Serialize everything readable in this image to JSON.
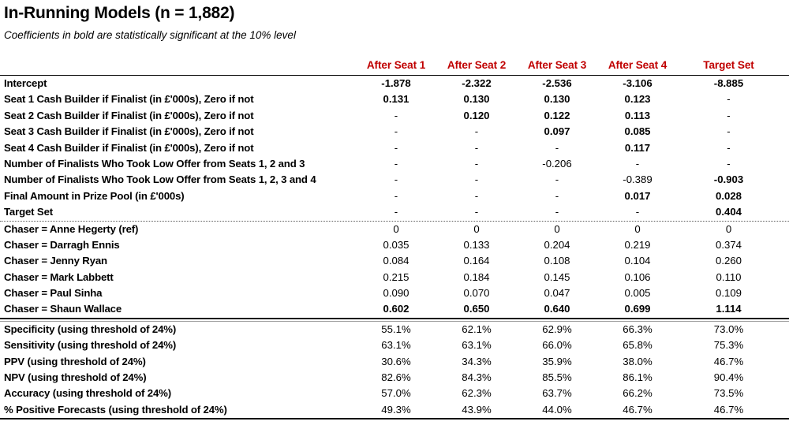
{
  "title": "In-Running Models (n = 1,882)",
  "subtitle": "Coefficients in bold are statistically significant at the 10% level",
  "accent_color": "#C00000",
  "bold_meaning": "statistically significant at the 10% level",
  "table": {
    "columns": [
      "After Seat 1",
      "After Seat 2",
      "After Seat 3",
      "After Seat 4",
      "Target Set"
    ],
    "sections": [
      {
        "name": "coefficients",
        "divider_before": "none",
        "rows": [
          {
            "label": "Intercept",
            "values": [
              "-1.878",
              "-2.322",
              "-2.536",
              "-3.106",
              "-8.885"
            ],
            "bold": [
              true,
              true,
              true,
              true,
              true
            ]
          },
          {
            "label": "Seat 1 Cash Builder if Finalist (in £'000s), Zero if not",
            "values": [
              "0.131",
              "0.130",
              "0.130",
              "0.123",
              "-"
            ],
            "bold": [
              true,
              true,
              true,
              true,
              false
            ]
          },
          {
            "label": "Seat 2 Cash Builder if Finalist (in £'000s), Zero if not",
            "values": [
              "-",
              "0.120",
              "0.122",
              "0.113",
              "-"
            ],
            "bold": [
              false,
              true,
              true,
              true,
              false
            ]
          },
          {
            "label": "Seat 3 Cash Builder if Finalist (in £'000s), Zero if not",
            "values": [
              "-",
              "-",
              "0.097",
              "0.085",
              "-"
            ],
            "bold": [
              false,
              false,
              true,
              true,
              false
            ]
          },
          {
            "label": "Seat 4 Cash Builder if Finalist (in £'000s), Zero if not",
            "values": [
              "-",
              "-",
              "-",
              "0.117",
              "-"
            ],
            "bold": [
              false,
              false,
              false,
              true,
              false
            ]
          },
          {
            "label": "Number of Finalists Who Took Low Offer from Seats 1, 2 and 3",
            "values": [
              "-",
              "-",
              "-0.206",
              "-",
              "-"
            ],
            "bold": [
              false,
              false,
              false,
              false,
              false
            ]
          },
          {
            "label": "Number of Finalists Who Took Low Offer from Seats 1, 2, 3 and 4",
            "values": [
              "-",
              "-",
              "-",
              "-0.389",
              "-0.903"
            ],
            "bold": [
              false,
              false,
              false,
              false,
              true
            ]
          },
          {
            "label": "Final Amount in Prize Pool (in £'000s)",
            "values": [
              "-",
              "-",
              "-",
              "0.017",
              "0.028"
            ],
            "bold": [
              false,
              false,
              false,
              true,
              true
            ]
          },
          {
            "label": "Target Set",
            "values": [
              "-",
              "-",
              "-",
              "-",
              "0.404"
            ],
            "bold": [
              false,
              false,
              false,
              false,
              true
            ]
          }
        ]
      },
      {
        "name": "chasers",
        "divider_before": "dotted",
        "rows": [
          {
            "label": "Chaser = Anne Hegerty (ref)",
            "values": [
              "0",
              "0",
              "0",
              "0",
              "0"
            ],
            "bold": [
              false,
              false,
              false,
              false,
              false
            ]
          },
          {
            "label": "Chaser = Darragh Ennis",
            "values": [
              "0.035",
              "0.133",
              "0.204",
              "0.219",
              "0.374"
            ],
            "bold": [
              false,
              false,
              false,
              false,
              false
            ]
          },
          {
            "label": "Chaser = Jenny Ryan",
            "values": [
              "0.084",
              "0.164",
              "0.108",
              "0.104",
              "0.260"
            ],
            "bold": [
              false,
              false,
              false,
              false,
              false
            ]
          },
          {
            "label": "Chaser = Mark Labbett",
            "values": [
              "0.215",
              "0.184",
              "0.145",
              "0.106",
              "0.110"
            ],
            "bold": [
              false,
              false,
              false,
              false,
              false
            ]
          },
          {
            "label": "Chaser = Paul Sinha",
            "values": [
              "0.090",
              "0.070",
              "0.047",
              "0.005",
              "0.109"
            ],
            "bold": [
              false,
              false,
              false,
              false,
              false
            ]
          },
          {
            "label": "Chaser = Shaun Wallace",
            "values": [
              "0.602",
              "0.650",
              "0.640",
              "0.699",
              "1.114"
            ],
            "bold": [
              true,
              true,
              true,
              true,
              true
            ]
          }
        ]
      },
      {
        "name": "diagnostics",
        "divider_before": "double",
        "rows": [
          {
            "label": "Specificity (using threshold of 24%)",
            "values": [
              "55.1%",
              "62.1%",
              "62.9%",
              "66.3%",
              "73.0%"
            ],
            "bold": [
              false,
              false,
              false,
              false,
              false
            ]
          },
          {
            "label": "Sensitivity (using threshold of 24%)",
            "values": [
              "63.1%",
              "63.1%",
              "66.0%",
              "65.8%",
              "75.3%"
            ],
            "bold": [
              false,
              false,
              false,
              false,
              false
            ]
          },
          {
            "label": "PPV (using threshold of 24%)",
            "values": [
              "30.6%",
              "34.3%",
              "35.9%",
              "38.0%",
              "46.7%"
            ],
            "bold": [
              false,
              false,
              false,
              false,
              false
            ]
          },
          {
            "label": "NPV (using threshold of 24%)",
            "values": [
              "82.6%",
              "84.3%",
              "85.5%",
              "86.1%",
              "90.4%"
            ],
            "bold": [
              false,
              false,
              false,
              false,
              false
            ]
          },
          {
            "label": "Accuracy (using threshold of 24%)",
            "values": [
              "57.0%",
              "62.3%",
              "63.7%",
              "66.2%",
              "73.5%"
            ],
            "bold": [
              false,
              false,
              false,
              false,
              false
            ]
          },
          {
            "label": "% Positive Forecasts (using threshold of 24%)",
            "values": [
              "49.3%",
              "43.9%",
              "44.0%",
              "46.7%",
              "46.7%"
            ],
            "bold": [
              false,
              false,
              false,
              false,
              false
            ]
          }
        ]
      }
    ]
  }
}
